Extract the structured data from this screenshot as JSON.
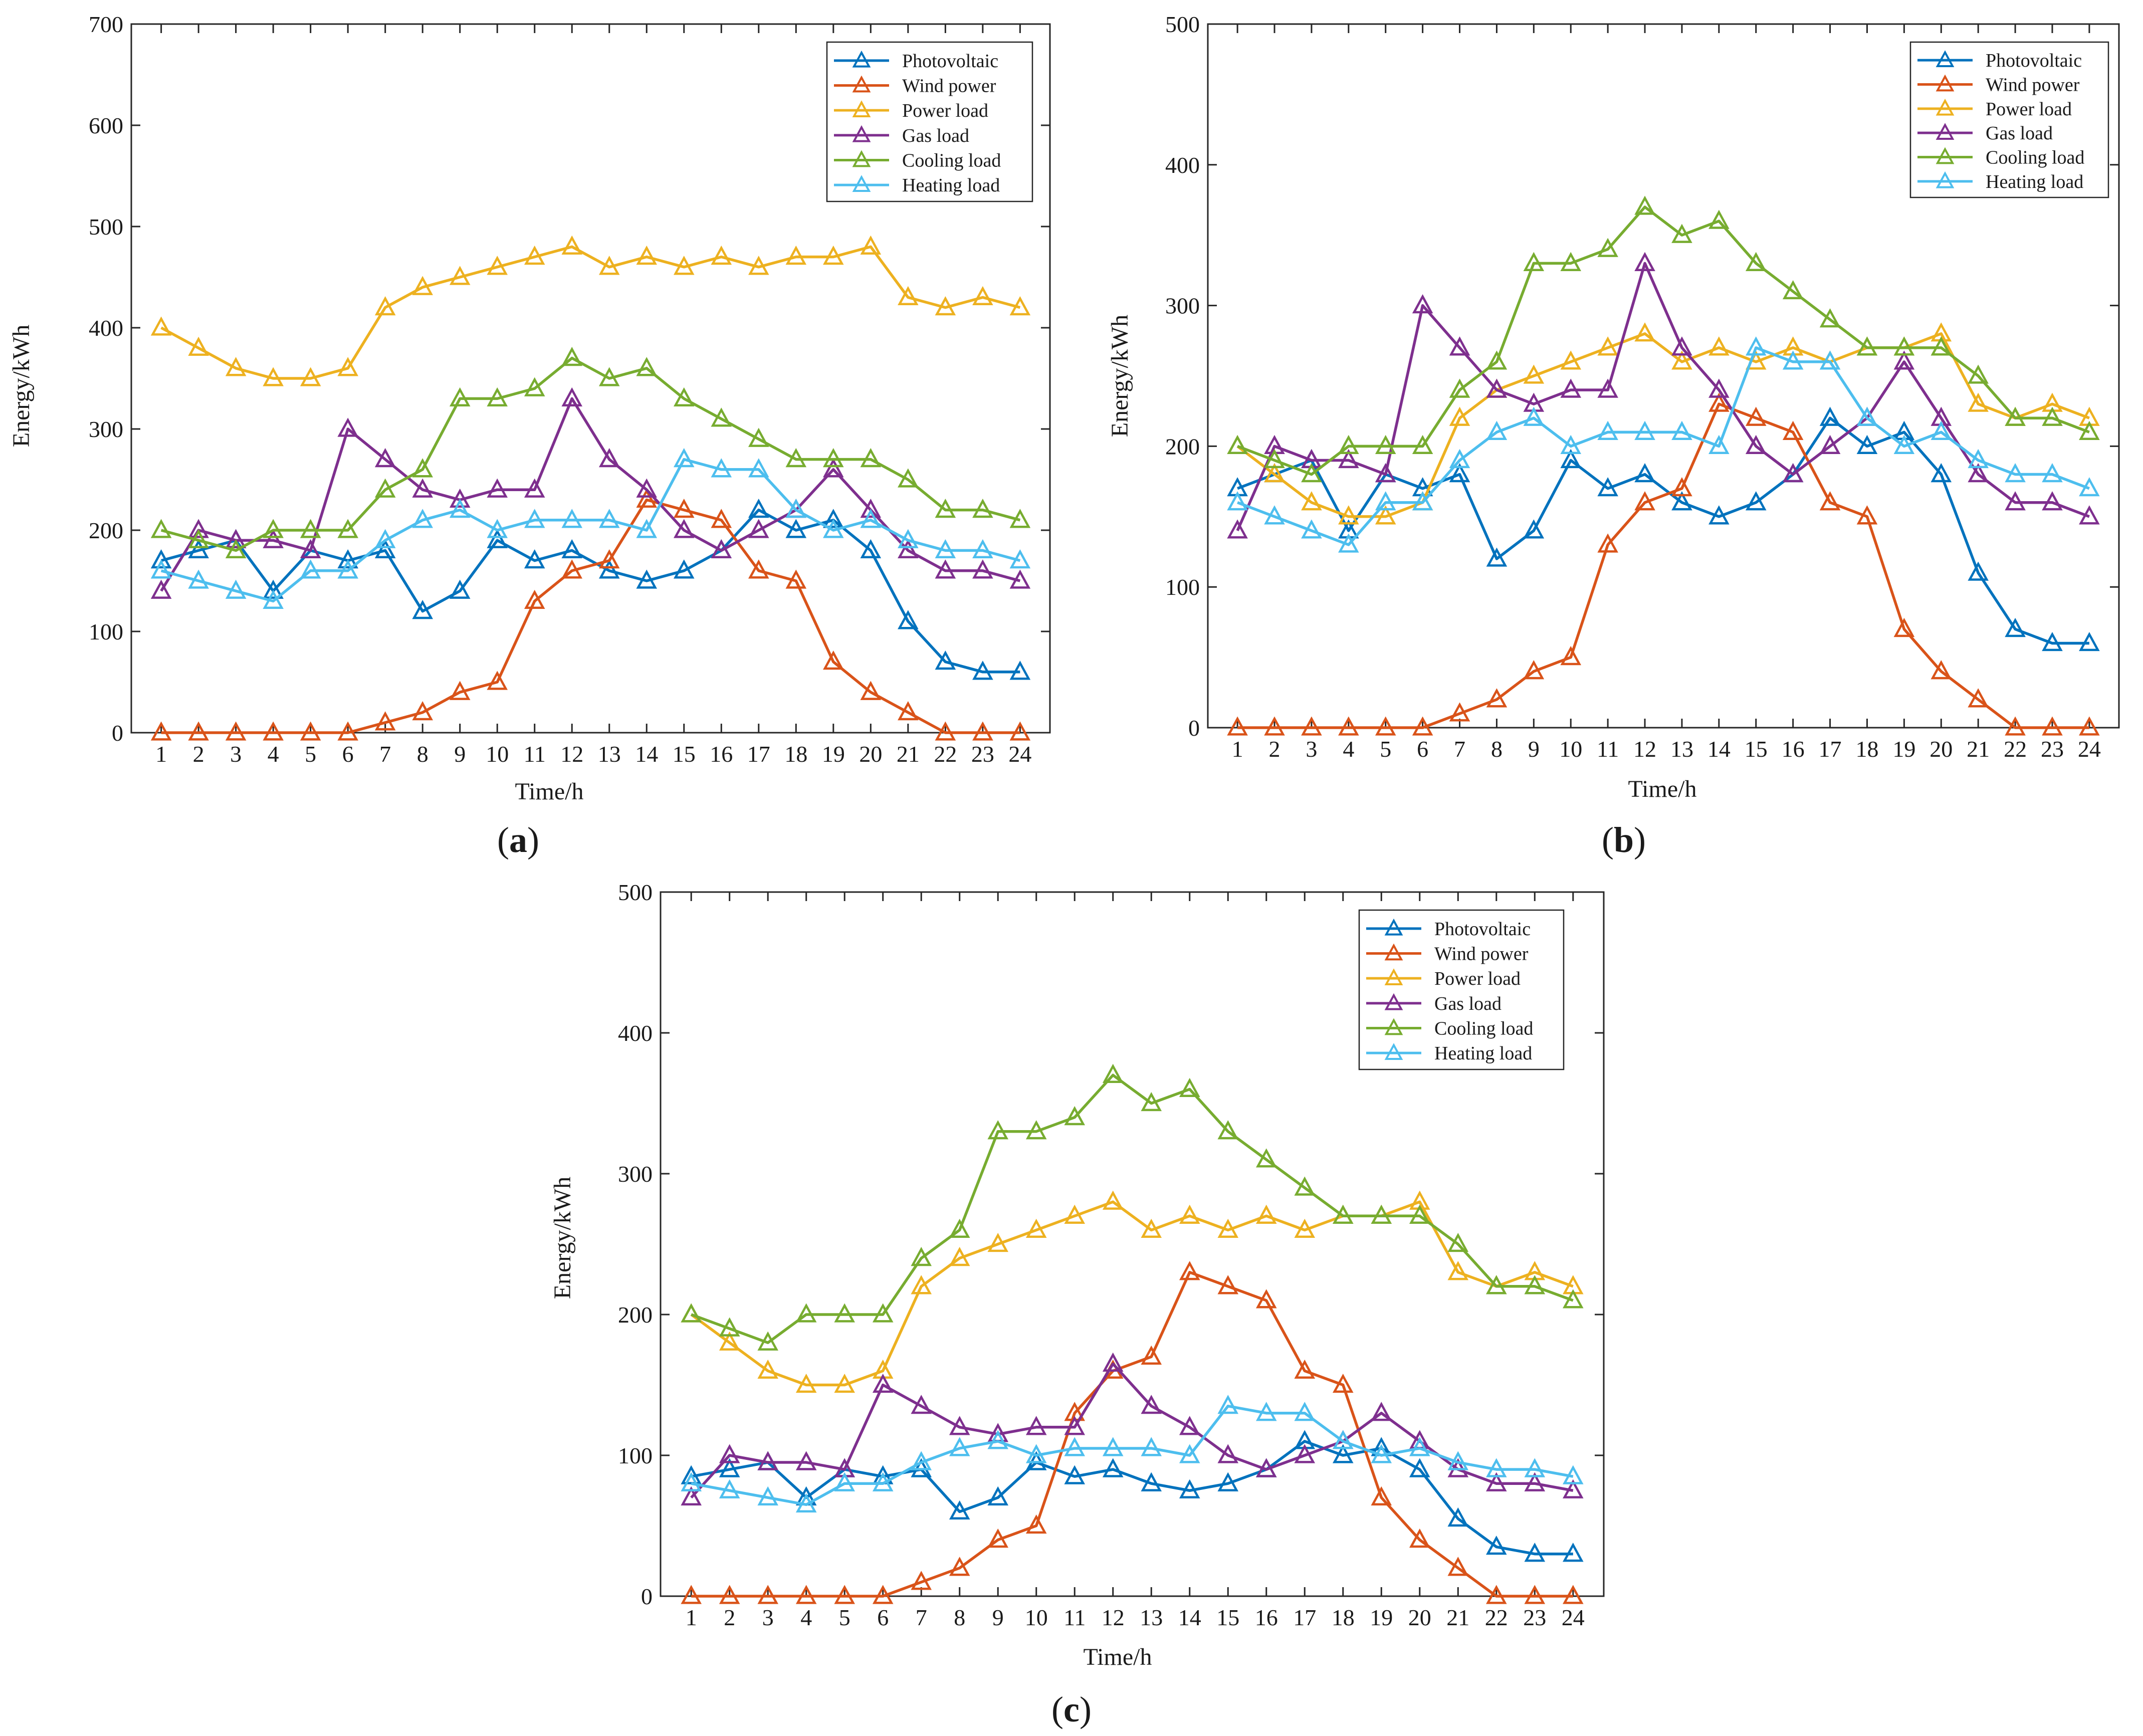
{
  "figure": {
    "colors": {
      "Photovoltaic": "#0072BD",
      "Wind power": "#D95319",
      "Power load": "#EDB120",
      "Gas load": "#7E2F8E",
      "Cooling load": "#77AC30",
      "Heating load": "#4DBEEE"
    }
  },
  "chart_data": [
    {
      "id": "a",
      "type": "line",
      "caption_open": "(",
      "caption_letter": "a",
      "caption_close": ")",
      "xlabel": "Time/h",
      "ylabel": "Energy/kWh",
      "xlim": [
        0.2,
        24.8
      ],
      "ylim": [
        0,
        700
      ],
      "yticks": [
        0,
        100,
        200,
        300,
        400,
        500,
        600,
        700
      ],
      "x": [
        1,
        2,
        3,
        4,
        5,
        6,
        7,
        8,
        9,
        10,
        11,
        12,
        13,
        14,
        15,
        16,
        17,
        18,
        19,
        20,
        21,
        22,
        23,
        24
      ],
      "legend_position": "top-right",
      "marker": "triangle",
      "series": [
        {
          "name": "Photovoltaic",
          "values": [
            170,
            180,
            190,
            140,
            180,
            170,
            180,
            120,
            140,
            190,
            170,
            180,
            160,
            150,
            160,
            180,
            220,
            200,
            210,
            180,
            110,
            70,
            60,
            60
          ]
        },
        {
          "name": "Wind power",
          "values": [
            0,
            0,
            0,
            0,
            0,
            0,
            10,
            20,
            40,
            50,
            130,
            160,
            170,
            230,
            220,
            210,
            160,
            150,
            70,
            40,
            20,
            0,
            0,
            0
          ]
        },
        {
          "name": "Power load",
          "values": [
            400,
            380,
            360,
            350,
            350,
            360,
            420,
            440,
            450,
            460,
            470,
            480,
            460,
            470,
            460,
            470,
            460,
            470,
            470,
            480,
            430,
            420,
            430,
            420
          ]
        },
        {
          "name": "Gas load",
          "values": [
            140,
            200,
            190,
            190,
            180,
            300,
            270,
            240,
            230,
            240,
            240,
            330,
            270,
            240,
            200,
            180,
            200,
            220,
            260,
            220,
            180,
            160,
            160,
            150
          ]
        },
        {
          "name": "Cooling load",
          "values": [
            200,
            190,
            180,
            200,
            200,
            200,
            240,
            260,
            330,
            330,
            340,
            370,
            350,
            360,
            330,
            310,
            290,
            270,
            270,
            270,
            250,
            220,
            220,
            210
          ]
        },
        {
          "name": "Heating load",
          "values": [
            160,
            150,
            140,
            130,
            160,
            160,
            190,
            210,
            220,
            200,
            210,
            210,
            210,
            200,
            270,
            260,
            260,
            220,
            200,
            210,
            190,
            180,
            180,
            170
          ]
        }
      ]
    },
    {
      "id": "b",
      "type": "line",
      "caption_open": "(",
      "caption_letter": "b",
      "caption_close": ")",
      "xlabel": "Time/h",
      "ylabel": "Energy/kWh",
      "xlim": [
        0.2,
        24.8
      ],
      "ylim": [
        0,
        500
      ],
      "yticks": [
        0,
        100,
        200,
        300,
        400,
        500
      ],
      "x": [
        1,
        2,
        3,
        4,
        5,
        6,
        7,
        8,
        9,
        10,
        11,
        12,
        13,
        14,
        15,
        16,
        17,
        18,
        19,
        20,
        21,
        22,
        23,
        24
      ],
      "legend_position": "top-right",
      "marker": "triangle",
      "series": [
        {
          "name": "Photovoltaic",
          "values": [
            170,
            180,
            190,
            140,
            180,
            170,
            180,
            120,
            140,
            190,
            170,
            180,
            160,
            150,
            160,
            180,
            220,
            200,
            210,
            180,
            110,
            70,
            60,
            60
          ]
        },
        {
          "name": "Wind power",
          "values": [
            0,
            0,
            0,
            0,
            0,
            0,
            10,
            20,
            40,
            50,
            130,
            160,
            170,
            230,
            220,
            210,
            160,
            150,
            70,
            40,
            20,
            0,
            0,
            0
          ]
        },
        {
          "name": "Power load",
          "values": [
            200,
            180,
            160,
            150,
            150,
            160,
            220,
            240,
            250,
            260,
            270,
            280,
            260,
            270,
            260,
            270,
            260,
            270,
            270,
            280,
            230,
            220,
            230,
            220
          ]
        },
        {
          "name": "Gas load",
          "values": [
            140,
            200,
            190,
            190,
            180,
            300,
            270,
            240,
            230,
            240,
            240,
            330,
            270,
            240,
            200,
            180,
            200,
            220,
            260,
            220,
            180,
            160,
            160,
            150
          ]
        },
        {
          "name": "Cooling load",
          "values": [
            200,
            190,
            180,
            200,
            200,
            200,
            240,
            260,
            330,
            330,
            340,
            370,
            350,
            360,
            330,
            310,
            290,
            270,
            270,
            270,
            250,
            220,
            220,
            210
          ]
        },
        {
          "name": "Heating load",
          "values": [
            160,
            150,
            140,
            130,
            160,
            160,
            190,
            210,
            220,
            200,
            210,
            210,
            210,
            200,
            270,
            260,
            260,
            220,
            200,
            210,
            190,
            180,
            180,
            170
          ]
        }
      ]
    },
    {
      "id": "c",
      "type": "line",
      "caption_open": "(",
      "caption_letter": "c",
      "caption_close": ")",
      "xlabel": "Time/h",
      "ylabel": "Energy/kWh",
      "xlim": [
        0.2,
        24.8
      ],
      "ylim": [
        0,
        500
      ],
      "yticks": [
        0,
        100,
        200,
        300,
        400,
        500
      ],
      "x": [
        1,
        2,
        3,
        4,
        5,
        6,
        7,
        8,
        9,
        10,
        11,
        12,
        13,
        14,
        15,
        16,
        17,
        18,
        19,
        20,
        21,
        22,
        23,
        24
      ],
      "legend_position": "top-right",
      "marker": "triangle",
      "series": [
        {
          "name": "Photovoltaic",
          "values": [
            85,
            90,
            95,
            70,
            90,
            85,
            90,
            60,
            70,
            95,
            85,
            90,
            80,
            75,
            80,
            90,
            110,
            100,
            105,
            90,
            55,
            35,
            30,
            30
          ]
        },
        {
          "name": "Wind power",
          "values": [
            0,
            0,
            0,
            0,
            0,
            0,
            10,
            20,
            40,
            50,
            130,
            160,
            170,
            230,
            220,
            210,
            160,
            150,
            70,
            40,
            20,
            0,
            0,
            0
          ]
        },
        {
          "name": "Power load",
          "values": [
            200,
            180,
            160,
            150,
            150,
            160,
            220,
            240,
            250,
            260,
            270,
            280,
            260,
            270,
            260,
            270,
            260,
            270,
            270,
            280,
            230,
            220,
            230,
            220
          ]
        },
        {
          "name": "Gas load",
          "values": [
            70,
            100,
            95,
            95,
            90,
            150,
            135,
            120,
            115,
            120,
            120,
            165,
            135,
            120,
            100,
            90,
            100,
            110,
            130,
            110,
            90,
            80,
            80,
            75
          ]
        },
        {
          "name": "Cooling load",
          "values": [
            200,
            190,
            180,
            200,
            200,
            200,
            240,
            260,
            330,
            330,
            340,
            370,
            350,
            360,
            330,
            310,
            290,
            270,
            270,
            270,
            250,
            220,
            220,
            210
          ]
        },
        {
          "name": "Heating load",
          "values": [
            80,
            75,
            70,
            65,
            80,
            80,
            95,
            105,
            110,
            100,
            105,
            105,
            105,
            100,
            135,
            130,
            130,
            110,
            100,
            105,
            95,
            90,
            90,
            85
          ]
        }
      ]
    }
  ]
}
